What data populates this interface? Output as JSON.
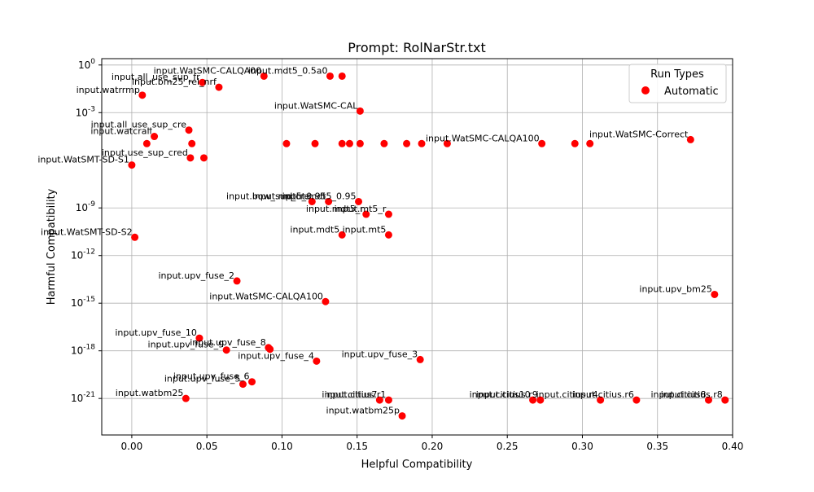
{
  "chart_data": {
    "type": "scatter",
    "title": "Prompt: RolNarStr.txt",
    "xlabel": "Helpful Compatibility",
    "ylabel": "Harmful Compatibility",
    "xlim": [
      -0.02,
      0.4
    ],
    "ylim_log10": [
      -23.3,
      0.4
    ],
    "x_scale": "linear",
    "y_scale": "log",
    "grid": true,
    "x_ticks": [
      0.0,
      0.05,
      0.1,
      0.15,
      0.2,
      0.25,
      0.3,
      0.35,
      0.4
    ],
    "x_tick_labels": [
      "0.00",
      "0.05",
      "0.10",
      "0.15",
      "0.20",
      "0.25",
      "0.30",
      "0.35",
      "0.40"
    ],
    "y_ticks_log10": [
      0,
      -3,
      -9,
      -12,
      -15,
      -18,
      -21
    ],
    "y_tick_labels": [
      "10^0",
      "10^-3",
      "10^-9",
      "10^-12",
      "10^-15",
      "10^-18",
      "10^-21"
    ],
    "legend": {
      "title": "Run Types",
      "position": "top-right",
      "entries": [
        "Automatic"
      ]
    },
    "series": [
      {
        "name": "Automatic",
        "color": "#ff0000",
        "points": [
          {
            "x": 0.088,
            "y_log10": -0.7,
            "label": "input.WatSMC-CALQA00"
          },
          {
            "x": 0.132,
            "y_log10": -0.7,
            "label": "input.mdt5_0.5a0"
          },
          {
            "x": 0.14,
            "y_log10": -0.7,
            "label": ""
          },
          {
            "x": 0.047,
            "y_log10": -1.1,
            "label": "input.all_use_sup_fr"
          },
          {
            "x": 0.058,
            "y_log10": -1.4,
            "label": "input.bm25_rel_nrf"
          },
          {
            "x": 0.007,
            "y_log10": -1.9,
            "label": "input.watrrmp"
          },
          {
            "x": 0.152,
            "y_log10": -2.9,
            "label": "input.WatSMC-CAL"
          },
          {
            "x": 0.038,
            "y_log10": -4.1,
            "label": "input.all_use_sup_cre"
          },
          {
            "x": 0.015,
            "y_log10": -4.5,
            "label": "input.watcrall"
          },
          {
            "x": 0.01,
            "y_log10": -4.95,
            "label": ""
          },
          {
            "x": 0.04,
            "y_log10": -4.95,
            "label": ""
          },
          {
            "x": 0.103,
            "y_log10": -4.95,
            "label": ""
          },
          {
            "x": 0.122,
            "y_log10": -4.95,
            "label": ""
          },
          {
            "x": 0.14,
            "y_log10": -4.95,
            "label": ""
          },
          {
            "x": 0.145,
            "y_log10": -4.95,
            "label": ""
          },
          {
            "x": 0.152,
            "y_log10": -4.95,
            "label": ""
          },
          {
            "x": 0.168,
            "y_log10": -4.95,
            "label": ""
          },
          {
            "x": 0.183,
            "y_log10": -4.95,
            "label": ""
          },
          {
            "x": 0.193,
            "y_log10": -4.95,
            "label": ""
          },
          {
            "x": 0.21,
            "y_log10": -4.95,
            "label": ""
          },
          {
            "x": 0.273,
            "y_log10": -4.95,
            "label": "input.WatSMC-CALQA100"
          },
          {
            "x": 0.295,
            "y_log10": -4.95,
            "label": ""
          },
          {
            "x": 0.305,
            "y_log10": -4.95,
            "label": ""
          },
          {
            "x": 0.372,
            "y_log10": -4.7,
            "label": "input.WatSMC-Correct"
          },
          {
            "x": 0.039,
            "y_log10": -5.85,
            "label": "input.use_sup_cred"
          },
          {
            "x": 0.048,
            "y_log10": -5.85,
            "label": ""
          },
          {
            "x": 0.0,
            "y_log10": -6.3,
            "label": "input.WatSMT-SD-S1"
          },
          {
            "x": 0.12,
            "y_log10": -8.6,
            "label": "input.bow_sup_cre"
          },
          {
            "x": 0.131,
            "y_log10": -8.6,
            "label": "input.mdt5_0.95"
          },
          {
            "x": 0.151,
            "y_log10": -8.6,
            "label": "input.mdt5_0.95"
          },
          {
            "x": 0.156,
            "y_log10": -9.4,
            "label": "input.mdt5_r"
          },
          {
            "x": 0.171,
            "y_log10": -9.4,
            "label": "input.mt5_r"
          },
          {
            "x": 0.14,
            "y_log10": -10.7,
            "label": "input.mdt5"
          },
          {
            "x": 0.171,
            "y_log10": -10.7,
            "label": "input.mt5"
          },
          {
            "x": 0.002,
            "y_log10": -10.85,
            "label": "input.WatSMT-SD-S2"
          },
          {
            "x": 0.07,
            "y_log10": -13.6,
            "label": "input.upv_fuse_2"
          },
          {
            "x": 0.129,
            "y_log10": -14.9,
            "label": "input.WatSMC-CALQA100"
          },
          {
            "x": 0.388,
            "y_log10": -14.45,
            "label": "input.upv_bm25"
          },
          {
            "x": 0.045,
            "y_log10": -17.2,
            "label": "input.upv_fuse_10"
          },
          {
            "x": 0.063,
            "y_log10": -17.95,
            "label": "input.upv_fuse_9"
          },
          {
            "x": 0.091,
            "y_log10": -17.8,
            "label": "input.upv_fuse_8"
          },
          {
            "x": 0.092,
            "y_log10": -17.9,
            "label": ""
          },
          {
            "x": 0.123,
            "y_log10": -18.65,
            "label": "input.upv_fuse_4"
          },
          {
            "x": 0.192,
            "y_log10": -18.55,
            "label": "input.upv_fuse_3"
          },
          {
            "x": 0.074,
            "y_log10": -20.1,
            "label": "input.upv_fuse_5"
          },
          {
            "x": 0.08,
            "y_log10": -19.95,
            "label": "input.upv_fuse_6"
          },
          {
            "x": 0.036,
            "y_log10": -21.0,
            "label": "input.watbm25"
          },
          {
            "x": 0.165,
            "y_log10": -21.1,
            "label": "input.citius7"
          },
          {
            "x": 0.171,
            "y_log10": -21.1,
            "label": "input.citius.r1"
          },
          {
            "x": 0.267,
            "y_log10": -21.1,
            "label": "input.citius10"
          },
          {
            "x": 0.272,
            "y_log10": -21.1,
            "label": "input.citius.r9"
          },
          {
            "x": 0.312,
            "y_log10": -21.1,
            "label": "input.citius.r4"
          },
          {
            "x": 0.336,
            "y_log10": -21.1,
            "label": "input.citius.r6"
          },
          {
            "x": 0.384,
            "y_log10": -21.1,
            "label": "input.citius8"
          },
          {
            "x": 0.395,
            "y_log10": -21.1,
            "label": "input.citius.r8"
          },
          {
            "x": 0.18,
            "y_log10": -22.1,
            "label": "input.watbm25p"
          }
        ]
      }
    ]
  }
}
